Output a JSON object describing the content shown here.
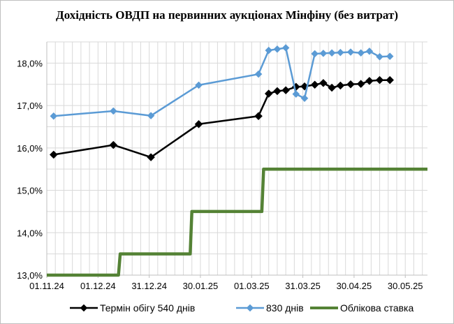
{
  "chart_data": {
    "type": "line",
    "title": "Дохідність ОВДП на первинних аукціонах Мінфіну (без витрат)",
    "xlabel": "",
    "ylabel": "",
    "ylim": [
      13.0,
      18.5
    ],
    "xlim": [
      "2024-11-01",
      "2025-06-12"
    ],
    "y_ticks": [
      "13,0%",
      "14,0%",
      "15,0%",
      "16,0%",
      "17,0%",
      "18,0%"
    ],
    "y_tick_values": [
      13.0,
      14.0,
      15.0,
      16.0,
      17.0,
      18.0
    ],
    "x_ticks": [
      "01.11.24",
      "01.12.24",
      "31.12.24",
      "30.01.25",
      "01.03.25",
      "31.03.25",
      "30.04.25",
      "30.05.25"
    ],
    "x_tick_dates": [
      "2024-11-01",
      "2024-12-01",
      "2024-12-31",
      "2025-01-30",
      "2025-03-01",
      "2025-03-31",
      "2025-04-30",
      "2025-05-30"
    ],
    "grid": true,
    "legend_position": "bottom",
    "series": [
      {
        "name": "Термін обігу 540 днів",
        "color": "#000000",
        "marker": "diamond",
        "points": [
          [
            "2024-11-05",
            15.84
          ],
          [
            "2024-12-10",
            16.07
          ],
          [
            "2025-01-01",
            15.78
          ],
          [
            "2025-01-29",
            16.56
          ],
          [
            "2025-03-05",
            16.75
          ],
          [
            "2025-03-11",
            17.28
          ],
          [
            "2025-03-16",
            17.34
          ],
          [
            "2025-03-21",
            17.36
          ],
          [
            "2025-03-27",
            17.44
          ],
          [
            "2025-04-01",
            17.45
          ],
          [
            "2025-04-07",
            17.49
          ],
          [
            "2025-04-12",
            17.53
          ],
          [
            "2025-04-17",
            17.42
          ],
          [
            "2025-04-22",
            17.47
          ],
          [
            "2025-04-28",
            17.5
          ],
          [
            "2025-05-04",
            17.51
          ],
          [
            "2025-05-09",
            17.58
          ],
          [
            "2025-05-15",
            17.6
          ],
          [
            "2025-05-21",
            17.6
          ]
        ]
      },
      {
        "name": "830 днів",
        "color": "#5b9bd5",
        "marker": "diamond",
        "points": [
          [
            "2024-11-05",
            16.75
          ],
          [
            "2024-12-10",
            16.87
          ],
          [
            "2025-01-01",
            16.76
          ],
          [
            "2025-01-29",
            17.48
          ],
          [
            "2025-03-05",
            17.74
          ],
          [
            "2025-03-11",
            18.3
          ],
          [
            "2025-03-16",
            18.33
          ],
          [
            "2025-03-21",
            18.36
          ],
          [
            "2025-03-27",
            17.27
          ],
          [
            "2025-04-01",
            17.17
          ],
          [
            "2025-04-07",
            18.22
          ],
          [
            "2025-04-12",
            18.23
          ],
          [
            "2025-04-17",
            18.24
          ],
          [
            "2025-04-22",
            18.25
          ],
          [
            "2025-04-28",
            18.26
          ],
          [
            "2025-05-04",
            18.24
          ],
          [
            "2025-05-09",
            18.28
          ],
          [
            "2025-05-15",
            18.15
          ],
          [
            "2025-05-21",
            18.16
          ]
        ]
      },
      {
        "name": "Облікова ставка",
        "color": "#548235",
        "marker": "none",
        "step": true,
        "points": [
          [
            "2024-11-01",
            13.0
          ],
          [
            "2024-12-13",
            13.0
          ],
          [
            "2024-12-14",
            13.5
          ],
          [
            "2025-01-24",
            13.5
          ],
          [
            "2025-01-25",
            14.5
          ],
          [
            "2025-03-07",
            14.5
          ],
          [
            "2025-03-08",
            15.5
          ],
          [
            "2025-06-12",
            15.5
          ]
        ]
      }
    ]
  }
}
